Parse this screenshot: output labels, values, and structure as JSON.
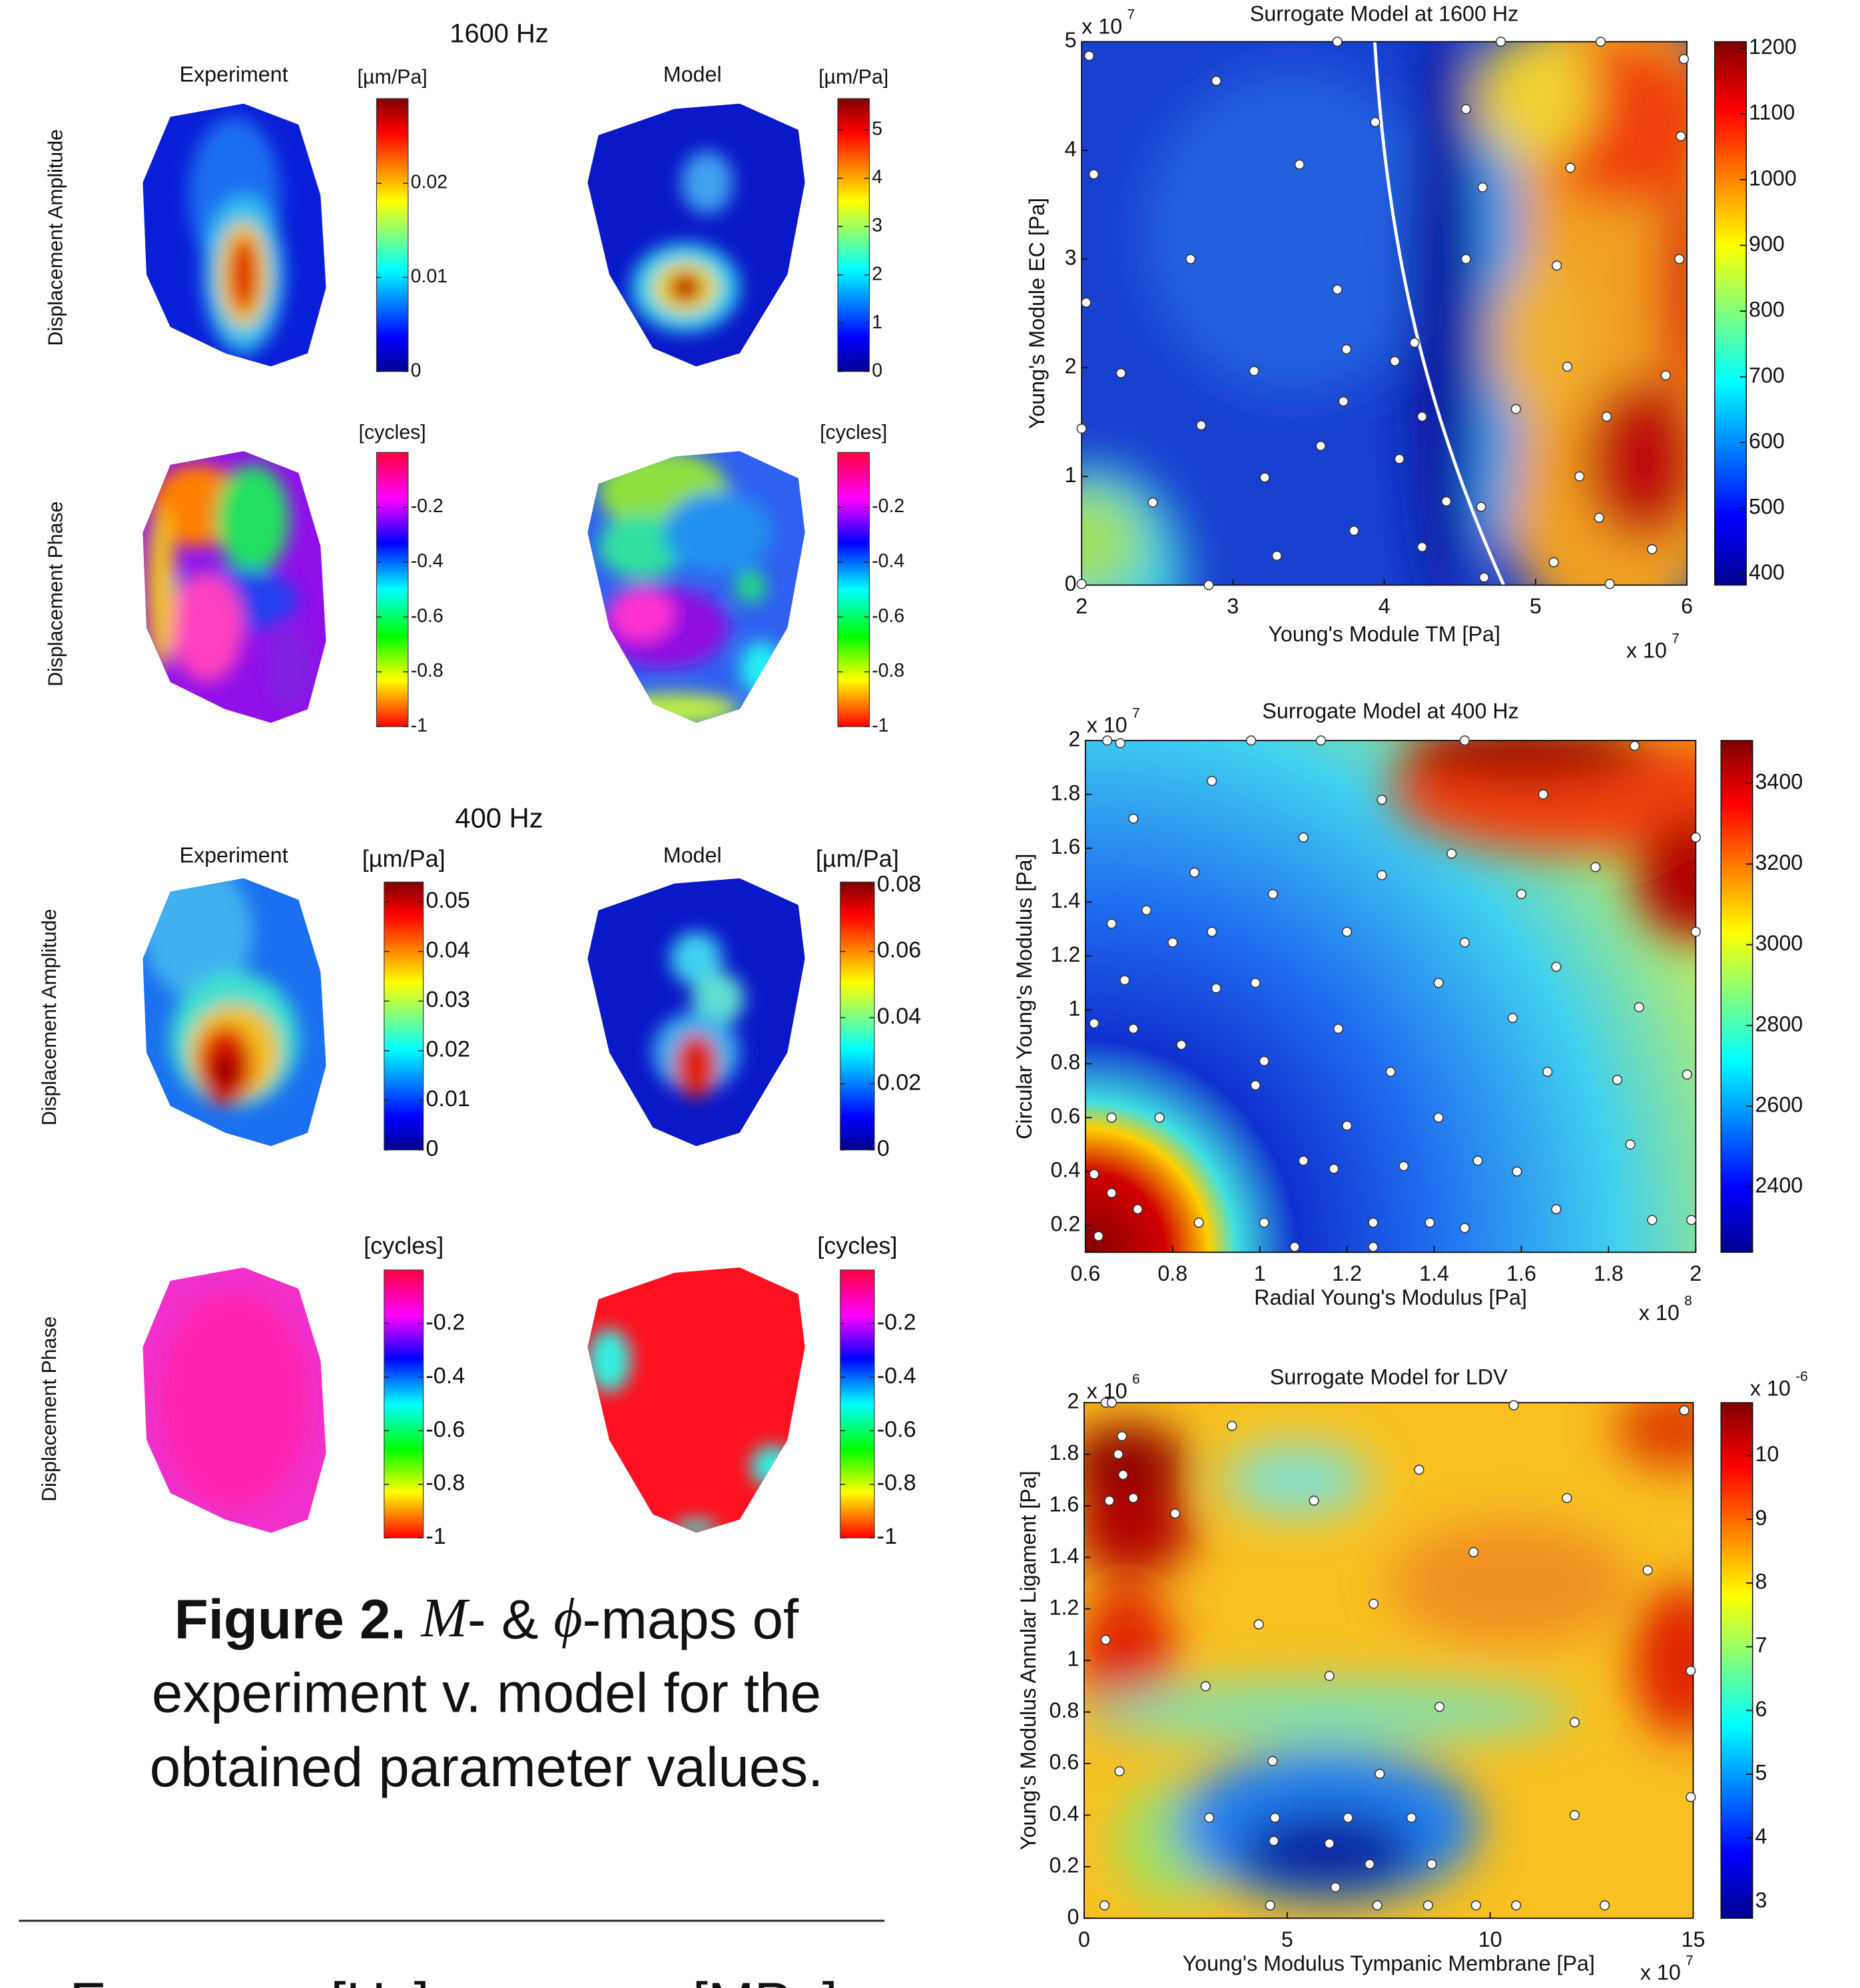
{
  "figure": {
    "panels": [
      {
        "frequency": "1600 Hz",
        "columns": [
          "Experiment",
          "Model"
        ],
        "rows": [
          "Displacement Amplitude",
          "Displacement Phase"
        ],
        "colorbars": [
          {
            "unit": "[µm/Pa]",
            "colormap": "jet",
            "lim": [
              0,
              0.029
            ],
            "ticks": [
              0,
              0.01,
              0.02
            ]
          },
          {
            "unit": "[µm/Pa]",
            "colormap": "jet",
            "lim": [
              0,
              5.65
            ],
            "ticks": [
              0,
              1,
              2,
              3,
              4,
              5
            ]
          },
          {
            "unit": "[cycles]",
            "colormap": "hsv",
            "lim": [
              -1,
              0
            ],
            "ticks": [
              -1,
              -0.8,
              -0.6,
              -0.4,
              -0.2
            ]
          },
          {
            "unit": "[cycles]",
            "colormap": "hsv",
            "lim": [
              -1,
              0
            ],
            "ticks": [
              -1,
              -0.8,
              -0.6,
              -0.4,
              -0.2
            ]
          }
        ]
      },
      {
        "frequency": "400 Hz",
        "columns": [
          "Experiment",
          "Model"
        ],
        "rows": [
          "Displacement Amplitude",
          "Displacement Phase"
        ],
        "colorbars": [
          {
            "unit": "[µm/Pa]",
            "colormap": "jet",
            "lim": [
              0,
              0.054
            ],
            "ticks": [
              0,
              0.01,
              0.02,
              0.03,
              0.04,
              0.05
            ]
          },
          {
            "unit": "[µm/Pa]",
            "colormap": "jet",
            "lim": [
              0,
              0.081
            ],
            "ticks": [
              0,
              0.02,
              0.04,
              0.06,
              0.08
            ]
          },
          {
            "unit": "[cycles]",
            "colormap": "hsv",
            "lim": [
              -1,
              0
            ],
            "ticks": [
              -1,
              -0.8,
              -0.6,
              -0.4,
              -0.2
            ]
          },
          {
            "unit": "[cycles]",
            "colormap": "hsv",
            "lim": [
              -1,
              0
            ],
            "ticks": [
              -1,
              -0.8,
              -0.6,
              -0.4,
              -0.2
            ]
          }
        ]
      }
    ],
    "caption": {
      "label": "Figure 2.",
      "symbol_m": "M",
      "text_1": "- &",
      "symbol_phi": "ϕ",
      "text_2": "-maps of",
      "line_2": "experiment v. model for the",
      "line_3": "obtained parameter values."
    }
  },
  "table": {
    "header": [
      "Exp",
      "ω [Hz]",
      "n",
      "[MPa]"
    ]
  },
  "chart_data": [
    {
      "type": "scatter",
      "title": "Surrogate Model at 1600 Hz",
      "xlabel": "Young's Module TM [Pa]",
      "ylabel": "Young's Module EC [Pa]",
      "x_multiplier": {
        "base": "x 10",
        "exponent": "7"
      },
      "y_multiplier": {
        "base": "x 10",
        "exponent": "7"
      },
      "xlim": [
        2,
        6
      ],
      "ylim": [
        0,
        5
      ],
      "xticks": [
        2,
        3,
        4,
        5,
        6
      ],
      "yticks": [
        0,
        1,
        2,
        3,
        4,
        5
      ],
      "colorbar": {
        "colormap": "jet",
        "lim": [
          383,
          1210
        ],
        "ticks": [
          400,
          500,
          600,
          700,
          800,
          900,
          1000,
          1100,
          1200
        ]
      },
      "marker_color": "#ffffff",
      "x": [
        2.05,
        2.89,
        3.69,
        4.77,
        5.43,
        5.98,
        3.94,
        4.54,
        5.96,
        2.08,
        3.44,
        4.65,
        5.23,
        2.72,
        3.69,
        4.54,
        5.14,
        5.95,
        2.03,
        3.75,
        4.2,
        4.07,
        3.14,
        2.26,
        5.21,
        5.86,
        3.73,
        4.87,
        4.25,
        5.47,
        2.79,
        2.0,
        3.58,
        4.1,
        5.29,
        3.21,
        2.47,
        4.41,
        4.64,
        5.42,
        3.8,
        4.25,
        5.77,
        3.29,
        5.12,
        4.66,
        2.84,
        5.49,
        2.0
      ],
      "y": [
        4.87,
        4.64,
        5,
        5,
        5,
        4.84,
        4.26,
        4.38,
        4.13,
        3.78,
        3.87,
        3.66,
        3.84,
        3.0,
        2.72,
        3.0,
        2.94,
        3.0,
        2.6,
        2.17,
        2.23,
        2.06,
        1.97,
        1.95,
        2.01,
        1.93,
        1.69,
        1.62,
        1.55,
        1.55,
        1.47,
        1.44,
        1.28,
        1.16,
        1.0,
        0.99,
        0.76,
        0.77,
        0.72,
        0.62,
        0.5,
        0.35,
        0.33,
        0.27,
        0.21,
        0.07,
        0,
        0.01,
        0.01
      ]
    },
    {
      "type": "scatter",
      "title": "Surrogate Model at 400 Hz",
      "xlabel": "Radial Young's Modulus [Pa]",
      "ylabel": "Circular Young's Modulus [Pa]",
      "x_multiplier": {
        "base": "x 10",
        "exponent": "8"
      },
      "y_multiplier": {
        "base": "x 10",
        "exponent": "7"
      },
      "xlim": [
        0.6,
        2
      ],
      "ylim": [
        0.1,
        2
      ],
      "xticks": [
        0.6,
        0.8,
        1,
        1.2,
        1.4,
        1.6,
        1.8,
        2
      ],
      "yticks": [
        0.2,
        0.4,
        0.6,
        0.8,
        1,
        1.2,
        1.4,
        1.6,
        1.8,
        2
      ],
      "colorbar": {
        "colormap": "jet",
        "lim": [
          2238,
          3506
        ],
        "ticks": [
          2400,
          2600,
          2800,
          3000,
          3200,
          3400
        ]
      },
      "marker_color": "#ffffff",
      "x": [
        0.65,
        0.68,
        0.98,
        1.14,
        1.47,
        1.86,
        0.89,
        1.28,
        1.65,
        0.71,
        1.1,
        1.44,
        1.77,
        2.0,
        0.85,
        1.28,
        1.03,
        1.6,
        0.66,
        0.74,
        2.0,
        0.8,
        0.89,
        1.2,
        1.47,
        0.69,
        0.9,
        0.99,
        1.41,
        1.68,
        0.62,
        0.71,
        1.18,
        1.58,
        1.87,
        0.82,
        1.01,
        1.3,
        1.66,
        1.82,
        1.98,
        0.66,
        0.77,
        0.99,
        1.41,
        1.2,
        1.85,
        1.1,
        1.5,
        1.17,
        1.33,
        1.59,
        0.62,
        0.66,
        1.68,
        1.9,
        0.72,
        0.86,
        1.01,
        1.26,
        1.47,
        1.39,
        0.63,
        1.99,
        1.08,
        1.26
      ],
      "y": [
        2.0,
        1.99,
        2.0,
        2.0,
        2.0,
        1.98,
        1.85,
        1.78,
        1.8,
        1.71,
        1.64,
        1.58,
        1.53,
        1.64,
        1.51,
        1.5,
        1.43,
        1.43,
        1.32,
        1.37,
        1.29,
        1.25,
        1.29,
        1.29,
        1.25,
        1.11,
        1.08,
        1.1,
        1.1,
        1.16,
        0.95,
        0.93,
        0.93,
        0.97,
        1.01,
        0.87,
        0.81,
        0.77,
        0.77,
        0.74,
        0.76,
        0.6,
        0.6,
        0.72,
        0.6,
        0.57,
        0.5,
        0.44,
        0.44,
        0.41,
        0.42,
        0.4,
        0.39,
        0.32,
        0.26,
        0.22,
        0.26,
        0.21,
        0.21,
        0.21,
        0.19,
        0.21,
        0.16,
        0.22,
        0.12,
        0.12
      ]
    },
    {
      "type": "scatter",
      "title": "Surrogate Model for LDV",
      "xlabel": "Young's Modulus Tympanic Membrane [Pa]",
      "ylabel": "Young's Modulus Annular Ligament [Pa]",
      "x_multiplier": {
        "base": "x 10",
        "exponent": "7"
      },
      "y_multiplier": {
        "base": "x 10",
        "exponent": "6"
      },
      "xlim": [
        0,
        15
      ],
      "ylim": [
        0,
        2
      ],
      "xticks": [
        0,
        5,
        10,
        15
      ],
      "yticks": [
        0,
        0.2,
        0.4,
        0.6,
        0.8,
        1,
        1.2,
        1.4,
        1.6,
        1.8,
        2
      ],
      "colorbar": {
        "colormap": "jet",
        "lim": [
          2.74,
          10.83
        ],
        "ticks": [
          3,
          4,
          5,
          6,
          7,
          8,
          9,
          10
        ],
        "multiplier": {
          "base": "x 10",
          "exponent": "-6"
        }
      },
      "marker_color": "#ffffff",
      "x": [
        0.53,
        0.68,
        0.93,
        0.84,
        0.96,
        0.62,
        1.21,
        2.24,
        3.64,
        5.66,
        8.25,
        10.58,
        14.78,
        11.89,
        9.59,
        13.88,
        4.3,
        7.13,
        0.53,
        14.94,
        2.99,
        6.04,
        8.75,
        12.08,
        0.87,
        4.64,
        7.28,
        14.94,
        3.08,
        4.7,
        6.5,
        8.06,
        12.08,
        4.67,
        6.04,
        7.03,
        8.56,
        6.19,
        0.5,
        4.58,
        7.22,
        8.47,
        9.65,
        10.64,
        12.82
      ],
      "y": [
        2.0,
        2.0,
        1.87,
        1.8,
        1.72,
        1.62,
        1.63,
        1.57,
        1.91,
        1.62,
        1.74,
        1.99,
        1.97,
        1.63,
        1.42,
        1.35,
        1.14,
        1.22,
        1.08,
        0.96,
        0.9,
        0.94,
        0.82,
        0.76,
        0.57,
        0.61,
        0.56,
        0.47,
        0.39,
        0.39,
        0.39,
        0.39,
        0.4,
        0.3,
        0.29,
        0.21,
        0.21,
        0.12,
        0.05,
        0.05,
        0.05,
        0.05,
        0.05,
        0.05,
        0.05
      ]
    }
  ]
}
